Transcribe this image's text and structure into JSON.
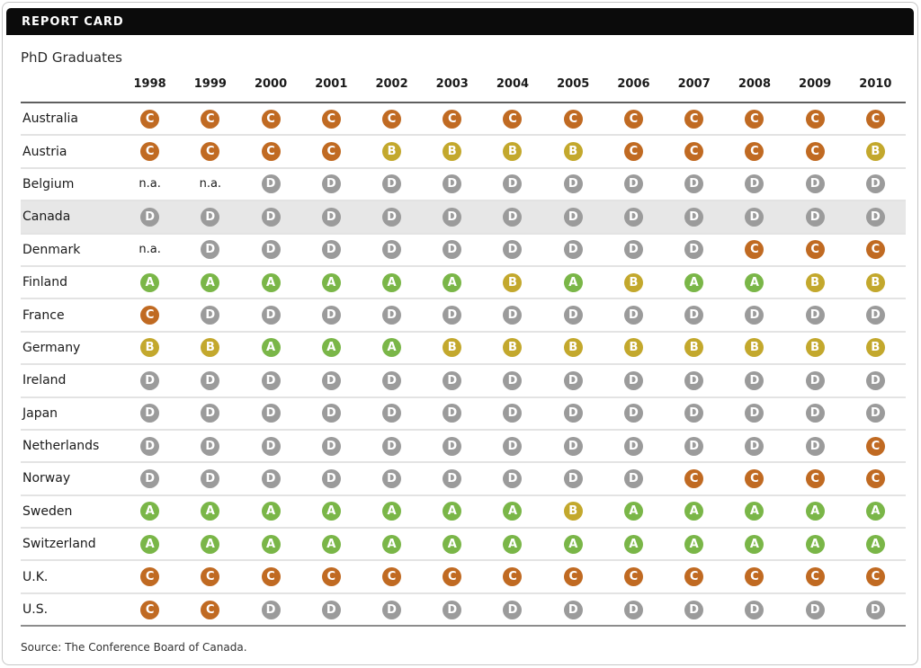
{
  "header": {
    "title": "REPORT CARD"
  },
  "subtitle": "PhD Graduates",
  "source": "Source: The Conference Board of Canada.",
  "grade_colors": {
    "A": "#7ab648",
    "B": "#c3a82d",
    "C": "#c06a22",
    "D": "#9b9b9b"
  },
  "na_label": "n.a.",
  "highlighted_country": "Canada",
  "chart_data": {
    "type": "table",
    "title": "PhD Graduates",
    "columns": [
      "1998",
      "1999",
      "2000",
      "2001",
      "2002",
      "2003",
      "2004",
      "2005",
      "2006",
      "2007",
      "2008",
      "2009",
      "2010"
    ],
    "rows": [
      {
        "country": "Australia",
        "grades": [
          "C",
          "C",
          "C",
          "C",
          "C",
          "C",
          "C",
          "C",
          "C",
          "C",
          "C",
          "C",
          "C"
        ]
      },
      {
        "country": "Austria",
        "grades": [
          "C",
          "C",
          "C",
          "C",
          "B",
          "B",
          "B",
          "B",
          "C",
          "C",
          "C",
          "C",
          "B"
        ]
      },
      {
        "country": "Belgium",
        "grades": [
          "n.a.",
          "n.a.",
          "D",
          "D",
          "D",
          "D",
          "D",
          "D",
          "D",
          "D",
          "D",
          "D",
          "D"
        ]
      },
      {
        "country": "Canada",
        "grades": [
          "D",
          "D",
          "D",
          "D",
          "D",
          "D",
          "D",
          "D",
          "D",
          "D",
          "D",
          "D",
          "D"
        ]
      },
      {
        "country": "Denmark",
        "grades": [
          "n.a.",
          "D",
          "D",
          "D",
          "D",
          "D",
          "D",
          "D",
          "D",
          "D",
          "C",
          "C",
          "C"
        ]
      },
      {
        "country": "Finland",
        "grades": [
          "A",
          "A",
          "A",
          "A",
          "A",
          "A",
          "B",
          "A",
          "B",
          "A",
          "A",
          "B",
          "B"
        ]
      },
      {
        "country": "France",
        "grades": [
          "C",
          "D",
          "D",
          "D",
          "D",
          "D",
          "D",
          "D",
          "D",
          "D",
          "D",
          "D",
          "D"
        ]
      },
      {
        "country": "Germany",
        "grades": [
          "B",
          "B",
          "A",
          "A",
          "A",
          "B",
          "B",
          "B",
          "B",
          "B",
          "B",
          "B",
          "B"
        ]
      },
      {
        "country": "Ireland",
        "grades": [
          "D",
          "D",
          "D",
          "D",
          "D",
          "D",
          "D",
          "D",
          "D",
          "D",
          "D",
          "D",
          "D"
        ]
      },
      {
        "country": "Japan",
        "grades": [
          "D",
          "D",
          "D",
          "D",
          "D",
          "D",
          "D",
          "D",
          "D",
          "D",
          "D",
          "D",
          "D"
        ]
      },
      {
        "country": "Netherlands",
        "grades": [
          "D",
          "D",
          "D",
          "D",
          "D",
          "D",
          "D",
          "D",
          "D",
          "D",
          "D",
          "D",
          "C"
        ]
      },
      {
        "country": "Norway",
        "grades": [
          "D",
          "D",
          "D",
          "D",
          "D",
          "D",
          "D",
          "D",
          "D",
          "C",
          "C",
          "C",
          "C"
        ]
      },
      {
        "country": "Sweden",
        "grades": [
          "A",
          "A",
          "A",
          "A",
          "A",
          "A",
          "A",
          "B",
          "A",
          "A",
          "A",
          "A",
          "A"
        ]
      },
      {
        "country": "Switzerland",
        "grades": [
          "A",
          "A",
          "A",
          "A",
          "A",
          "A",
          "A",
          "A",
          "A",
          "A",
          "A",
          "A",
          "A"
        ]
      },
      {
        "country": "U.K.",
        "grades": [
          "C",
          "C",
          "C",
          "C",
          "C",
          "C",
          "C",
          "C",
          "C",
          "C",
          "C",
          "C",
          "C"
        ]
      },
      {
        "country": "U.S.",
        "grades": [
          "C",
          "C",
          "D",
          "D",
          "D",
          "D",
          "D",
          "D",
          "D",
          "D",
          "D",
          "D",
          "D"
        ]
      }
    ]
  }
}
